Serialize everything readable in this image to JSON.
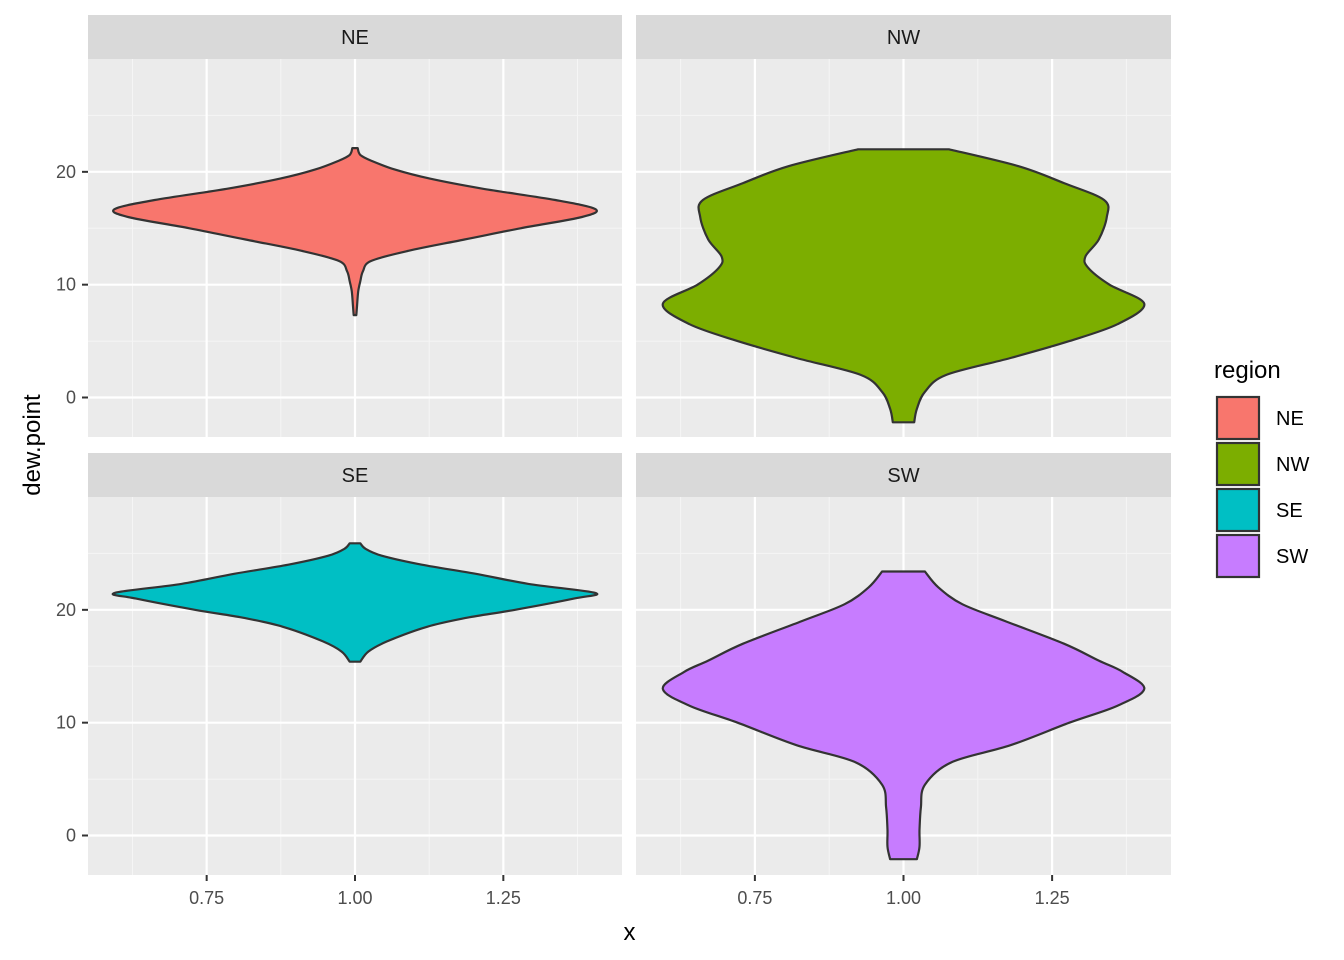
{
  "chart_data": {
    "type": "violin",
    "facet_by": "region",
    "facets": [
      "NE",
      "NW",
      "SE",
      "SW"
    ],
    "xlabel": "x",
    "ylabel": "dew.point",
    "xlim": [
      0.55,
      1.45
    ],
    "ylim": [
      -3.5,
      30
    ],
    "x_ticks": [
      {
        "value": 0.75,
        "label": "0.75"
      },
      {
        "value": 1.0,
        "label": "1.00"
      },
      {
        "value": 1.25,
        "label": "1.25"
      }
    ],
    "y_ticks": [
      {
        "value": 0,
        "label": "0"
      },
      {
        "value": 10,
        "label": "10"
      },
      {
        "value": 20,
        "label": "20"
      }
    ],
    "legend": {
      "title": "region",
      "position": "right",
      "entries": [
        {
          "label": "NE",
          "color": "#F8766D"
        },
        {
          "label": "NW",
          "color": "#7CAE00"
        },
        {
          "label": "SE",
          "color": "#00BFC4"
        },
        {
          "label": "SW",
          "color": "#C77CFF"
        }
      ]
    },
    "series": [
      {
        "name": "NE",
        "color": "#F8766D",
        "density": [
          [
            7.3,
            0.005
          ],
          [
            8.2,
            0.008
          ],
          [
            9.4,
            0.012
          ],
          [
            10.3,
            0.02
          ],
          [
            11.2,
            0.03
          ],
          [
            12.1,
            0.06
          ],
          [
            13.0,
            0.2
          ],
          [
            14.0,
            0.41
          ],
          [
            15.0,
            0.62
          ],
          [
            16.0,
            0.85
          ],
          [
            16.7,
            0.9
          ],
          [
            17.5,
            0.75
          ],
          [
            18.5,
            0.48
          ],
          [
            19.4,
            0.28
          ],
          [
            20.2,
            0.15
          ],
          [
            21.0,
            0.06
          ],
          [
            21.5,
            0.02
          ],
          [
            22.1,
            0.01
          ]
        ]
      },
      {
        "name": "NW",
        "color": "#7CAE00",
        "density": [
          [
            -2.2,
            0.04
          ],
          [
            -1.0,
            0.05
          ],
          [
            0.5,
            0.08
          ],
          [
            2.0,
            0.16
          ],
          [
            3.5,
            0.4
          ],
          [
            5.0,
            0.62
          ],
          [
            6.5,
            0.8
          ],
          [
            8.3,
            0.9
          ],
          [
            10.0,
            0.77
          ],
          [
            11.5,
            0.69
          ],
          [
            12.5,
            0.68
          ],
          [
            14.0,
            0.73
          ],
          [
            16.0,
            0.76
          ],
          [
            17.5,
            0.75
          ],
          [
            19.0,
            0.6
          ],
          [
            20.5,
            0.43
          ],
          [
            22.0,
            0.17
          ]
        ]
      },
      {
        "name": "SE",
        "color": "#00BFC4",
        "density": [
          [
            15.4,
            0.02
          ],
          [
            16.3,
            0.05
          ],
          [
            17.2,
            0.12
          ],
          [
            18.5,
            0.27
          ],
          [
            19.3,
            0.42
          ],
          [
            20.0,
            0.6
          ],
          [
            21.0,
            0.82
          ],
          [
            21.5,
            0.9
          ],
          [
            22.3,
            0.65
          ],
          [
            23.2,
            0.45
          ],
          [
            24.0,
            0.25
          ],
          [
            24.8,
            0.1
          ],
          [
            25.4,
            0.04
          ],
          [
            25.9,
            0.02
          ]
        ]
      },
      {
        "name": "SW",
        "color": "#C77CFF",
        "density": [
          [
            -2.1,
            0.05
          ],
          [
            -1.0,
            0.06
          ],
          [
            0.5,
            0.06
          ],
          [
            2.5,
            0.065
          ],
          [
            4.5,
            0.08
          ],
          [
            6.5,
            0.18
          ],
          [
            8.0,
            0.4
          ],
          [
            10.0,
            0.62
          ],
          [
            11.5,
            0.8
          ],
          [
            13.0,
            0.9
          ],
          [
            14.5,
            0.82
          ],
          [
            15.5,
            0.73
          ],
          [
            17.0,
            0.6
          ],
          [
            19.0,
            0.38
          ],
          [
            20.5,
            0.22
          ],
          [
            22.0,
            0.13
          ],
          [
            23.4,
            0.08
          ]
        ]
      }
    ]
  }
}
